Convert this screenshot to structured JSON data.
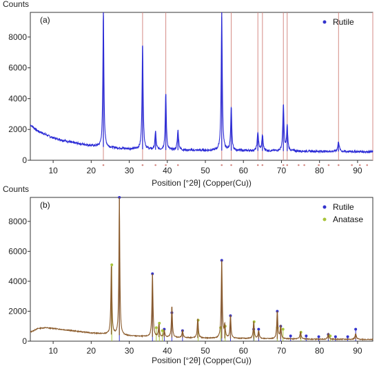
{
  "chart_data": [
    {
      "type": "line",
      "panel_label": "(a)",
      "ylabel": "Counts",
      "xlabel": "Position [°2θ] (Copper(Cu))",
      "xlim": [
        4,
        94
      ],
      "ylim": [
        0,
        9600
      ],
      "xticks": [
        10,
        20,
        30,
        40,
        50,
        60,
        70,
        80,
        90
      ],
      "yticks": [
        0,
        2000,
        4000,
        6000,
        8000
      ],
      "trace_color": "#2b2bd6",
      "background": {
        "x": [
          4,
          6,
          10,
          15,
          20,
          25,
          30,
          40,
          50,
          60,
          70,
          80,
          90,
          94
        ],
        "y": [
          2300,
          1900,
          1450,
          1150,
          950,
          820,
          740,
          660,
          640,
          620,
          600,
          580,
          560,
          550
        ]
      },
      "peaks": [
        {
          "x": 23.2,
          "height": 9600,
          "width": 0.28
        },
        {
          "x": 33.5,
          "height": 7400,
          "width": 0.3
        },
        {
          "x": 36.9,
          "height": 1900,
          "width": 0.3
        },
        {
          "x": 39.6,
          "height": 4300,
          "width": 0.3
        },
        {
          "x": 42.8,
          "height": 1950,
          "width": 0.35
        },
        {
          "x": 54.3,
          "height": 9600,
          "width": 0.3
        },
        {
          "x": 56.8,
          "height": 3400,
          "width": 0.3
        },
        {
          "x": 63.8,
          "height": 1800,
          "width": 0.35
        },
        {
          "x": 65.0,
          "height": 1600,
          "width": 0.35
        },
        {
          "x": 70.5,
          "height": 3600,
          "width": 0.32
        },
        {
          "x": 71.5,
          "height": 2200,
          "width": 0.32
        },
        {
          "x": 85.0,
          "height": 1200,
          "width": 0.4
        }
      ],
      "reference_lines": [
        23.2,
        33.5,
        39.6,
        54.3,
        56.8,
        63.8,
        65.0,
        70.5,
        71.5,
        85.0,
        94.0
      ],
      "reference_dots": [
        23.2,
        33.5,
        36.9,
        39.6,
        42.8,
        54.3,
        56.8,
        63.8,
        65.0,
        70.5,
        71.5,
        74.5,
        76.0,
        79.8,
        82.4,
        85.0,
        88.5,
        90.6,
        92.5
      ],
      "legend": [
        {
          "label": "Rutile",
          "color": "#3333cc"
        }
      ]
    },
    {
      "type": "line",
      "panel_label": "(b)",
      "ylabel": "Counts",
      "xlabel": "Position [°2θ] (Copper(Cu))",
      "xlim": [
        4,
        94
      ],
      "ylim": [
        0,
        9600
      ],
      "xticks": [
        10,
        20,
        30,
        40,
        50,
        60,
        70,
        80,
        90
      ],
      "yticks": [
        0,
        2000,
        4000,
        6000,
        8000
      ],
      "trace_color": "#8a5a2a",
      "background": {
        "x": [
          4,
          6,
          8,
          10,
          15,
          20,
          25,
          30,
          40,
          50,
          60,
          70,
          80,
          90,
          94
        ],
        "y": [
          600,
          850,
          900,
          850,
          700,
          550,
          450,
          350,
          250,
          200,
          180,
          150,
          130,
          120,
          110
        ]
      },
      "peaks": [
        {
          "x": 25.3,
          "height": 5000,
          "width": 0.28
        },
        {
          "x": 27.4,
          "height": 9600,
          "width": 0.25
        },
        {
          "x": 36.1,
          "height": 4500,
          "width": 0.28
        },
        {
          "x": 37.8,
          "height": 1100,
          "width": 0.3
        },
        {
          "x": 39.2,
          "height": 700,
          "width": 0.3
        },
        {
          "x": 41.2,
          "height": 2300,
          "width": 0.28
        },
        {
          "x": 44.0,
          "height": 700,
          "width": 0.3
        },
        {
          "x": 48.0,
          "height": 1500,
          "width": 0.3
        },
        {
          "x": 54.3,
          "height": 5400,
          "width": 0.28
        },
        {
          "x": 55.1,
          "height": 1000,
          "width": 0.3
        },
        {
          "x": 56.6,
          "height": 1700,
          "width": 0.28
        },
        {
          "x": 62.7,
          "height": 1300,
          "width": 0.3
        },
        {
          "x": 64.0,
          "height": 700,
          "width": 0.3
        },
        {
          "x": 68.9,
          "height": 2000,
          "width": 0.3
        },
        {
          "x": 69.8,
          "height": 1000,
          "width": 0.3
        },
        {
          "x": 75.0,
          "height": 600,
          "width": 0.35
        },
        {
          "x": 82.3,
          "height": 500,
          "width": 0.35
        },
        {
          "x": 89.5,
          "height": 500,
          "width": 0.35
        }
      ],
      "reference_series": [
        {
          "name": "Rutile",
          "color": "#3333cc",
          "positions": [
            27.4,
            36.1,
            39.2,
            41.2,
            44.0,
            54.3,
            56.6,
            62.7,
            64.0,
            68.9,
            69.8,
            72.4,
            76.5,
            79.8,
            82.3,
            84.2,
            87.4,
            89.5
          ],
          "heights": [
            9600,
            4500,
            800,
            1900,
            700,
            5400,
            1700,
            800,
            800,
            2000,
            1000,
            350,
            350,
            300,
            450,
            300,
            300,
            800
          ]
        },
        {
          "name": "Anatase",
          "color": "#a8c43a",
          "positions": [
            25.3,
            37.0,
            37.8,
            38.6,
            48.0,
            53.9,
            55.1,
            62.7,
            68.8,
            70.3,
            75.0,
            82.7
          ],
          "heights": [
            5100,
            900,
            1200,
            700,
            1400,
            900,
            1000,
            1300,
            900,
            800,
            600,
            350
          ]
        }
      ],
      "legend": [
        {
          "label": "Rutile",
          "color": "#3333cc"
        },
        {
          "label": "Anatase",
          "color": "#a8c43a"
        }
      ]
    }
  ]
}
